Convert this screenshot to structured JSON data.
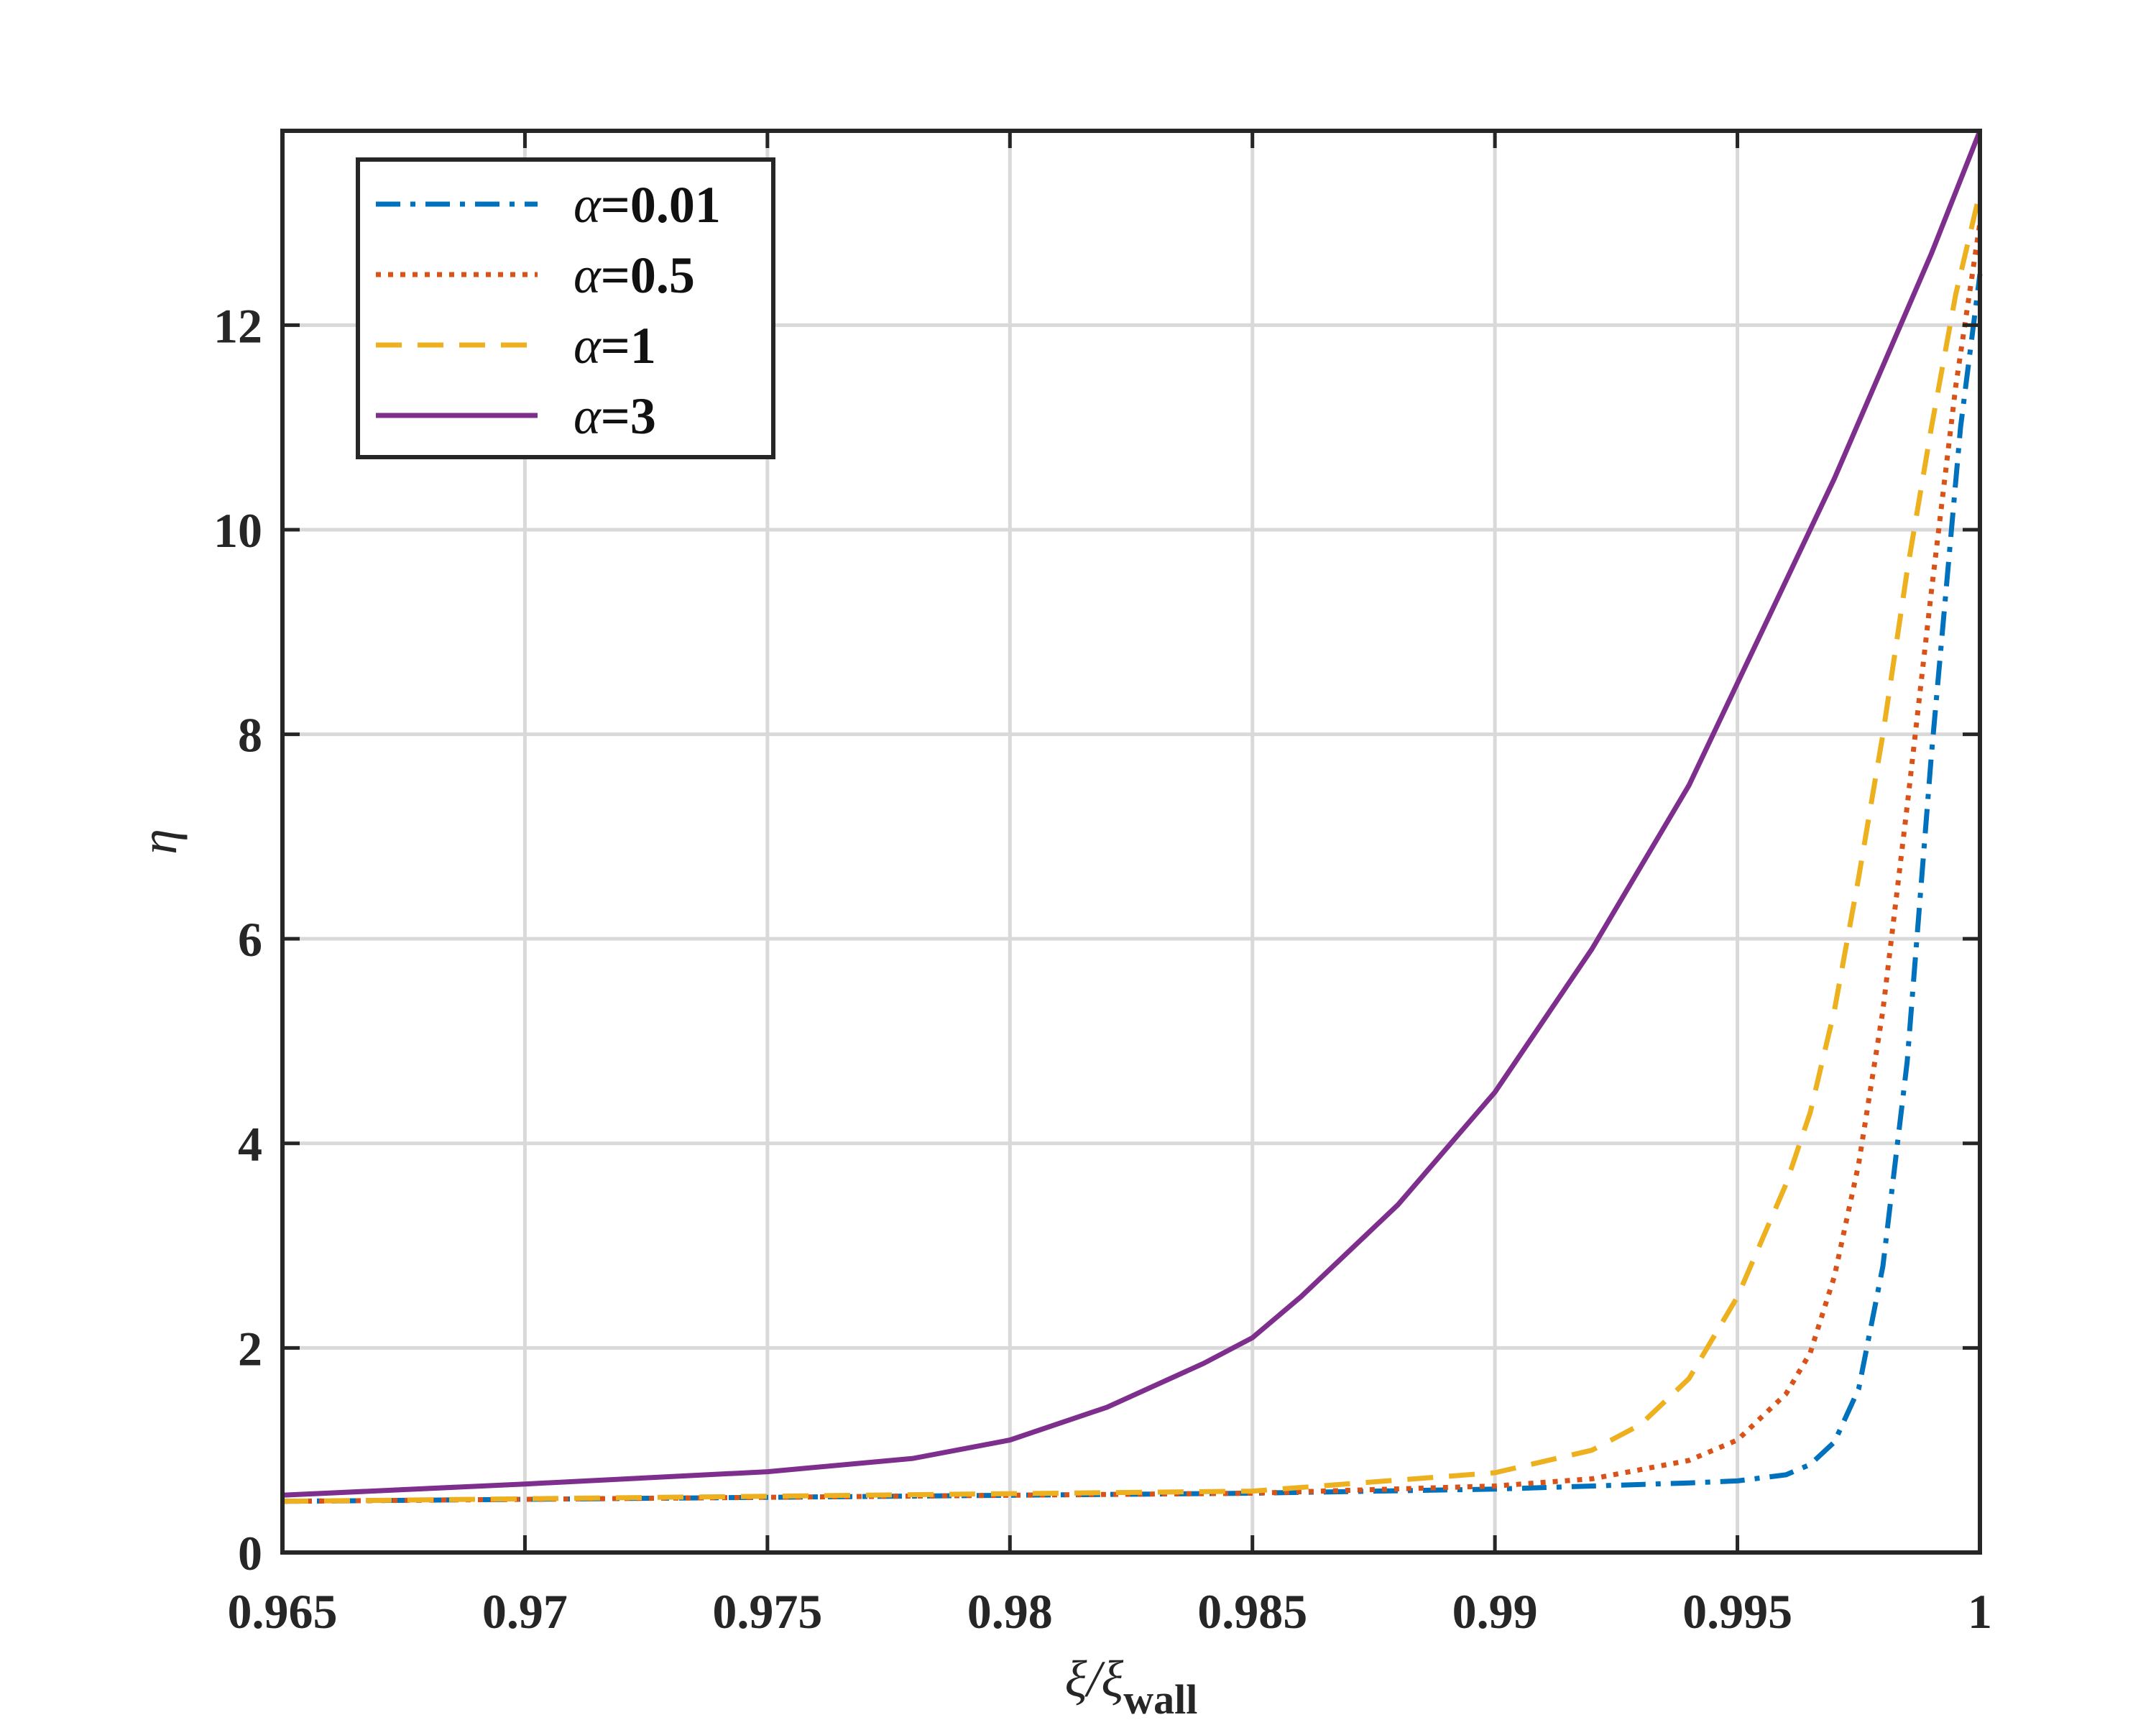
{
  "chart_data": {
    "type": "line",
    "xlabel": "ξ/ξ",
    "xlabel_sub": "wall",
    "ylabel": "η",
    "xlim": [
      0.965,
      1
    ],
    "ylim": [
      0,
      13.9
    ],
    "xticks": [
      0.965,
      0.97,
      0.975,
      0.98,
      0.985,
      0.99,
      0.995,
      1
    ],
    "xtick_labels": [
      "0.965",
      "0.97",
      "0.975",
      "0.98",
      "0.985",
      "0.99",
      "0.995",
      "1"
    ],
    "yticks": [
      0,
      2,
      4,
      6,
      8,
      10,
      12
    ],
    "ytick_labels": [
      "0",
      "2",
      "4",
      "6",
      "8",
      "10",
      "12"
    ],
    "grid": true,
    "legend_position": "top-left",
    "series": [
      {
        "name": "α=0.01",
        "color": "#0072BD",
        "style": "dashdot",
        "x": [
          0.965,
          0.975,
          0.985,
          0.99,
          0.994,
          0.995,
          0.996,
          0.9965,
          0.997,
          0.9975,
          0.998,
          0.9985,
          0.999,
          0.9993,
          0.9996,
          1.0
        ],
        "y": [
          0.5,
          0.54,
          0.58,
          0.62,
          0.68,
          0.7,
          0.76,
          0.86,
          1.08,
          1.6,
          2.8,
          4.8,
          7.8,
          9.4,
          11.0,
          12.5
        ]
      },
      {
        "name": "α=0.5",
        "color": "#D95319",
        "style": "dotted",
        "x": [
          0.965,
          0.975,
          0.985,
          0.99,
          0.992,
          0.994,
          0.995,
          0.996,
          0.9965,
          0.997,
          0.9975,
          0.998,
          0.9985,
          0.999,
          0.9995,
          1.0
        ],
        "y": [
          0.5,
          0.54,
          0.58,
          0.65,
          0.72,
          0.9,
          1.1,
          1.55,
          1.95,
          2.7,
          3.8,
          5.3,
          7.3,
          9.4,
          11.4,
          13.0
        ]
      },
      {
        "name": "α=1",
        "color": "#EDB120",
        "style": "dashed",
        "x": [
          0.965,
          0.975,
          0.985,
          0.99,
          0.992,
          0.993,
          0.994,
          0.995,
          0.996,
          0.9965,
          0.997,
          0.9975,
          0.998,
          0.9985,
          0.999,
          0.9995,
          1.0
        ],
        "y": [
          0.5,
          0.55,
          0.6,
          0.78,
          1.0,
          1.25,
          1.7,
          2.5,
          3.6,
          4.3,
          5.3,
          6.6,
          8.0,
          9.6,
          11.0,
          12.3,
          13.3
        ]
      },
      {
        "name": "α=3",
        "color": "#7E2F8E",
        "style": "solid",
        "x": [
          0.965,
          0.97,
          0.975,
          0.978,
          0.98,
          0.982,
          0.984,
          0.985,
          0.986,
          0.988,
          0.99,
          0.992,
          0.994,
          0.995,
          0.996,
          0.997,
          0.998,
          0.999,
          1.0
        ],
        "y": [
          0.56,
          0.67,
          0.79,
          0.92,
          1.1,
          1.42,
          1.85,
          2.1,
          2.5,
          3.4,
          4.5,
          5.9,
          7.5,
          8.5,
          9.5,
          10.5,
          11.6,
          12.7,
          13.9
        ]
      }
    ]
  }
}
